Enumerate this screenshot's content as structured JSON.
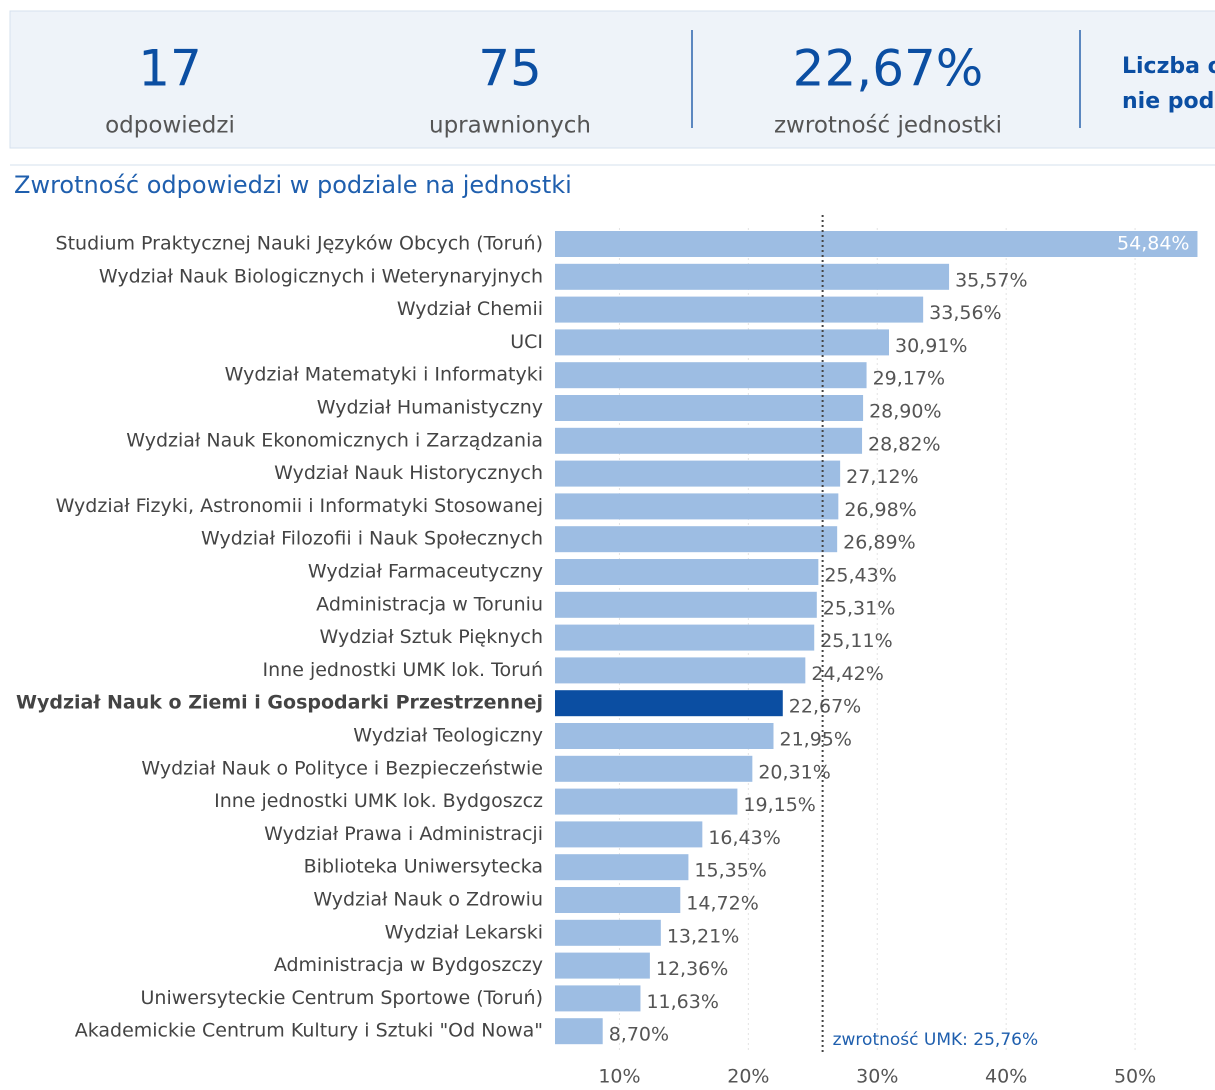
{
  "header": {
    "kpis": [
      {
        "value": "17",
        "label": "odpowiedzi"
      },
      {
        "value": "75",
        "label": "uprawnionych"
      },
      {
        "value": "22,67%",
        "label": "zwrotność jednostki"
      }
    ],
    "cut_off": [
      "Liczba o",
      "nie pod"
    ]
  },
  "chart_data": {
    "type": "barh",
    "title": "Zwrotność odpowiedzi w podziale na jednostki",
    "categories": [
      "Studium Praktycznej Nauki Języków Obcych (Toruń)",
      "Wydział Nauk Biologicznych i Weterynaryjnych",
      "Wydział Chemii",
      "UCI",
      "Wydział Matematyki i Informatyki",
      "Wydział Humanistyczny",
      "Wydział Nauk Ekonomicznych i Zarządzania",
      "Wydział Nauk Historycznych",
      "Wydział Fizyki, Astronomii i Informatyki Stosowanej",
      "Wydział Filozofii i Nauk Społecznych",
      "Wydział Farmaceutyczny",
      "Administracja w Toruniu",
      "Wydział Sztuk Pięknych",
      "Inne jednostki UMK lok. Toruń",
      "Wydział Nauk o Ziemi i Gospodarki Przestrzennej",
      "Wydział Teologiczny",
      "Wydział Nauk o Polityce i Bezpieczeństwie",
      "Inne jednostki UMK lok. Bydgoszcz",
      "Wydział Prawa i Administracji",
      "Biblioteka Uniwersytecka",
      "Wydział Nauk o Zdrowiu",
      "Wydział Lekarski",
      "Administracja w Bydgoszczy",
      "Uniwersyteckie Centrum Sportowe (Toruń)",
      "Akademickie Centrum Kultury i Sztuki \"Od Nowa\""
    ],
    "values": [
      54.84,
      35.57,
      33.56,
      30.91,
      29.17,
      28.9,
      28.82,
      27.12,
      26.98,
      26.89,
      25.43,
      25.31,
      25.11,
      24.42,
      22.67,
      21.95,
      20.31,
      19.15,
      16.43,
      15.35,
      14.72,
      13.21,
      12.36,
      11.63,
      8.7
    ],
    "value_labels": [
      "54,84%",
      "35,57%",
      "33,56%",
      "30,91%",
      "29,17%",
      "28,90%",
      "28,82%",
      "27,12%",
      "26,98%",
      "26,89%",
      "25,43%",
      "25,31%",
      "25,11%",
      "24,42%",
      "22,67%",
      "21,95%",
      "20,31%",
      "19,15%",
      "16,43%",
      "15,35%",
      "14,72%",
      "13,21%",
      "12,36%",
      "11,63%",
      "8,70%"
    ],
    "colors": [
      "#9dbde3",
      "#9dbde3",
      "#9dbde3",
      "#9dbde3",
      "#9dbde3",
      "#9dbde3",
      "#9dbde3",
      "#9dbde3",
      "#9dbde3",
      "#9dbde3",
      "#9dbde3",
      "#9dbde3",
      "#9dbde3",
      "#9dbde3",
      "#0b4ea2",
      "#9dbde3",
      "#9dbde3",
      "#9dbde3",
      "#9dbde3",
      "#9dbde3",
      "#9dbde3",
      "#9dbde3",
      "#9dbde3",
      "#9dbde3",
      "#9dbde3"
    ],
    "xlim": [
      5,
      56.2
    ],
    "xticks": [
      {
        "value": 10,
        "label": "10%"
      },
      {
        "value": 20,
        "label": "20%"
      },
      {
        "value": 30,
        "label": "30%"
      },
      {
        "value": 40,
        "label": "40%"
      },
      {
        "value": 50,
        "label": "50%"
      }
    ],
    "grid": true,
    "reference_line": {
      "value": 25.76,
      "label": "zwrotność UMK: 25,76%"
    }
  }
}
